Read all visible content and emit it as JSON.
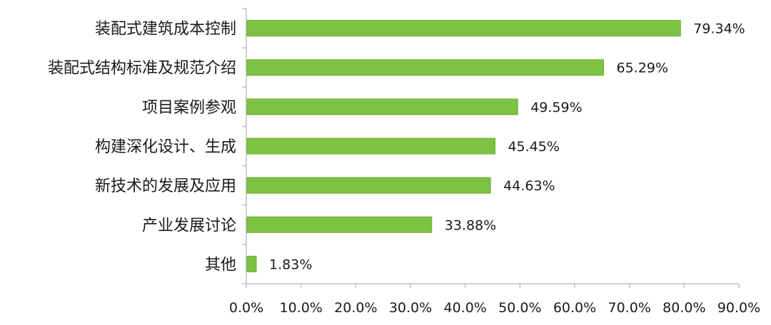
{
  "chart_data": {
    "type": "bar",
    "orientation": "horizontal",
    "title": "",
    "xlabel": "",
    "ylabel": "",
    "categories": [
      "装配式建筑成本控制",
      "装配式结构标准及规范介绍",
      "项目案例参观",
      "构建深化设计、生成",
      "新技术的发展及应用",
      "产业发展讨论",
      "其他"
    ],
    "values": [
      79.34,
      65.29,
      49.59,
      45.45,
      44.63,
      33.88,
      1.83
    ],
    "value_labels": [
      "79.34%",
      "65.29%",
      "49.59%",
      "45.45%",
      "44.63%",
      "33.88%",
      "1.83%"
    ],
    "xlim": [
      0,
      90
    ],
    "xticks": [
      0,
      10,
      20,
      30,
      40,
      50,
      60,
      70,
      80,
      90
    ],
    "xtick_labels": [
      "0.0%",
      "10.0%",
      "20.0%",
      "30.0%",
      "40.0%",
      "50.0%",
      "60.0%",
      "70.0%",
      "80.0%",
      "90.0%"
    ],
    "grid": false,
    "legend": "none",
    "bar_color": "#7dc242"
  }
}
